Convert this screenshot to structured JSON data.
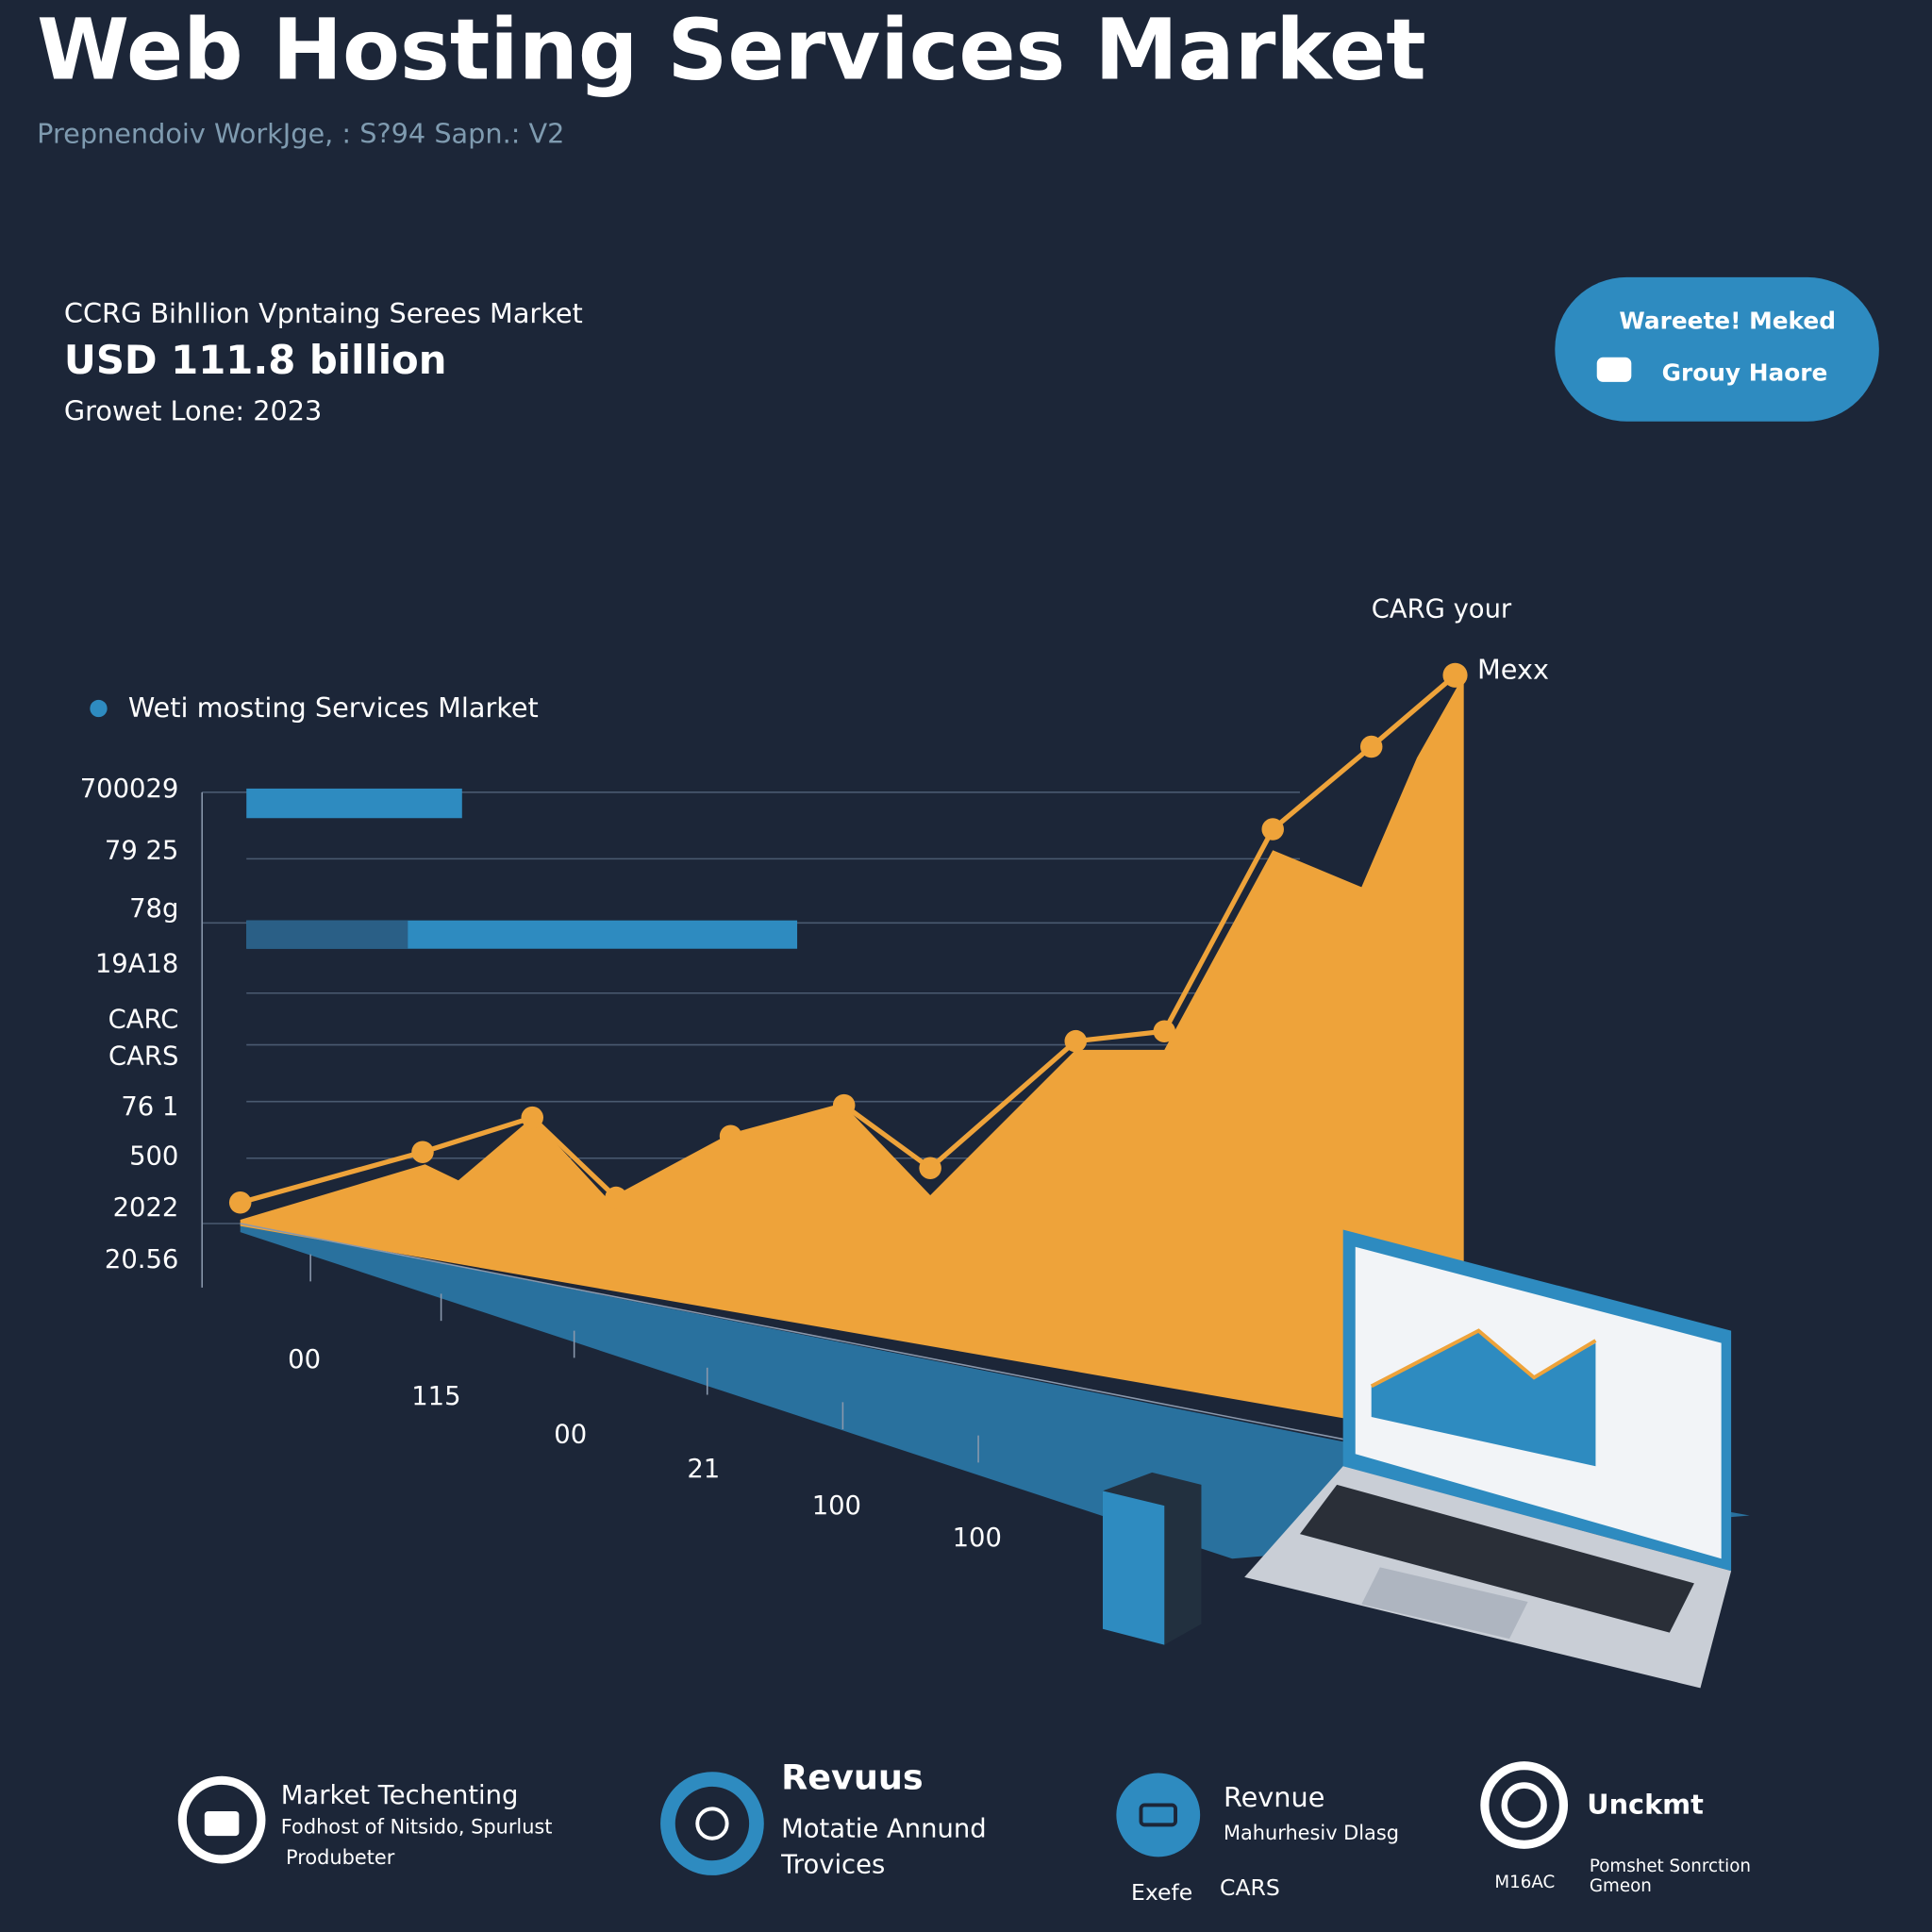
{
  "header": {
    "title": "Web Hosting Services Market",
    "subtitle": "Prepnendoiv WorkJge, : S?94 Sapn.: V2"
  },
  "stats": {
    "label": "CCRG Bihllion Vpntaing Serees Market",
    "value": "USD 111.8 billion",
    "note": "Growet Lone: 2023"
  },
  "button": {
    "line1": "Wareete! Meked",
    "line2": "Grouy Haore"
  },
  "chart": {
    "annotation_top": "CARG your",
    "annotation_peak": "Mexx",
    "legend": "Weti mosting Services Mlarket",
    "y_labels": [
      "700029",
      "79 25",
      "78g",
      "19A18",
      "CARC",
      "CARS",
      "76 1",
      "500",
      "2022",
      "20.56"
    ],
    "x_labels": [
      "00",
      "115",
      "00",
      "21",
      "100",
      "100"
    ]
  },
  "features": [
    {
      "title": "Market Techenting",
      "lines": [
        "Fodhost of Nitsido, Spurlust",
        "Produbeter"
      ]
    },
    {
      "title": "Revuus",
      "lines": [
        "Motatie Annund",
        "Trovices"
      ]
    },
    {
      "title": "Revnue",
      "lines": [
        "Mahurhesiv Dlasg",
        "Exefe",
        "CARS"
      ]
    },
    {
      "title": "Unckmt",
      "lines": [
        "M16AC",
        "Pomshet Sonrction",
        "Gmeon"
      ]
    }
  ]
}
